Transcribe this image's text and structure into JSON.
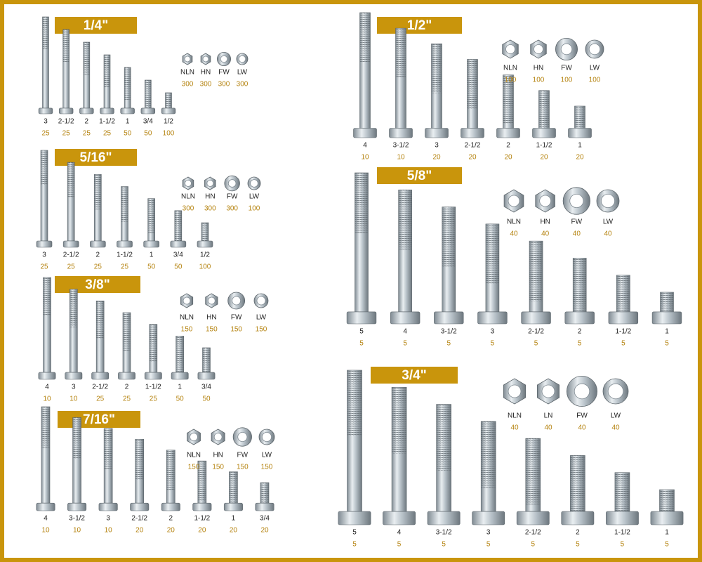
{
  "sections": [
    {
      "title": "1/4\"",
      "bolts": [
        {
          "size": "3",
          "qty": 25
        },
        {
          "size": "2-1/2",
          "qty": 25
        },
        {
          "size": "2",
          "qty": 25
        },
        {
          "size": "1-1/2",
          "qty": 25
        },
        {
          "size": "1",
          "qty": 50
        },
        {
          "size": "3/4",
          "qty": 50
        },
        {
          "size": "1/2",
          "qty": 100
        }
      ],
      "hardware": [
        {
          "name": "NLN",
          "qty": 300
        },
        {
          "name": "HN",
          "qty": 300
        },
        {
          "name": "FW",
          "qty": 300
        },
        {
          "name": "LW",
          "qty": 300
        }
      ]
    },
    {
      "title": "5/16\"",
      "bolts": [
        {
          "size": "3",
          "qty": 25
        },
        {
          "size": "2-1/2",
          "qty": 25
        },
        {
          "size": "2",
          "qty": 25
        },
        {
          "size": "1-1/2",
          "qty": 25
        },
        {
          "size": "1",
          "qty": 50
        },
        {
          "size": "3/4",
          "qty": 50
        },
        {
          "size": "1/2",
          "qty": 100
        }
      ],
      "hardware": [
        {
          "name": "NLN",
          "qty": 300
        },
        {
          "name": "HN",
          "qty": 300
        },
        {
          "name": "FW",
          "qty": 300
        },
        {
          "name": "LW",
          "qty": 100
        }
      ]
    },
    {
      "title": "3/8\"",
      "bolts": [
        {
          "size": "4",
          "qty": 10
        },
        {
          "size": "3",
          "qty": 10
        },
        {
          "size": "2-1/2",
          "qty": 25
        },
        {
          "size": "2",
          "qty": 25
        },
        {
          "size": "1-1/2",
          "qty": 25
        },
        {
          "size": "1",
          "qty": 50
        },
        {
          "size": "3/4",
          "qty": 50
        }
      ],
      "hardware": [
        {
          "name": "NLN",
          "qty": 150
        },
        {
          "name": "HN",
          "qty": 150
        },
        {
          "name": "FW",
          "qty": 150
        },
        {
          "name": "LW",
          "qty": 150
        }
      ]
    },
    {
      "title": "7/16\"",
      "bolts": [
        {
          "size": "4",
          "qty": 10
        },
        {
          "size": "3-1/2",
          "qty": 10
        },
        {
          "size": "3",
          "qty": 10
        },
        {
          "size": "2-1/2",
          "qty": 20
        },
        {
          "size": "2",
          "qty": 20
        },
        {
          "size": "1-1/2",
          "qty": 20
        },
        {
          "size": "1",
          "qty": 20
        },
        {
          "size": "3/4",
          "qty": 20
        }
      ],
      "hardware": [
        {
          "name": "NLN",
          "qty": 150
        },
        {
          "name": "HN",
          "qty": 150
        },
        {
          "name": "FW",
          "qty": 150
        },
        {
          "name": "LW",
          "qty": 150
        }
      ]
    },
    {
      "title": "1/2\"",
      "bolts": [
        {
          "size": "4",
          "qty": 10
        },
        {
          "size": "3-1/2",
          "qty": 10
        },
        {
          "size": "3",
          "qty": 20
        },
        {
          "size": "2-1/2",
          "qty": 20
        },
        {
          "size": "2",
          "qty": 20
        },
        {
          "size": "1-1/2",
          "qty": 20
        },
        {
          "size": "1",
          "qty": 20
        }
      ],
      "hardware": [
        {
          "name": "NLN",
          "qty": 100
        },
        {
          "name": "HN",
          "qty": 100
        },
        {
          "name": "FW",
          "qty": 100
        },
        {
          "name": "LW",
          "qty": 100
        }
      ]
    },
    {
      "title": "5/8\"",
      "bolts": [
        {
          "size": "5",
          "qty": 5
        },
        {
          "size": "4",
          "qty": 5
        },
        {
          "size": "3-1/2",
          "qty": 5
        },
        {
          "size": "3",
          "qty": 5
        },
        {
          "size": "2-1/2",
          "qty": 5
        },
        {
          "size": "2",
          "qty": 5
        },
        {
          "size": "1-1/2",
          "qty": 5
        },
        {
          "size": "1",
          "qty": 5
        }
      ],
      "hardware": [
        {
          "name": "NLN",
          "qty": 40
        },
        {
          "name": "HN",
          "qty": 40
        },
        {
          "name": "FW",
          "qty": 40
        },
        {
          "name": "LW",
          "qty": 40
        }
      ]
    },
    {
      "title": "3/4\"",
      "bolts": [
        {
          "size": "5",
          "qty": 5
        },
        {
          "size": "4",
          "qty": 5
        },
        {
          "size": "3-1/2",
          "qty": 5
        },
        {
          "size": "3",
          "qty": 5
        },
        {
          "size": "2-1/2",
          "qty": 5
        },
        {
          "size": "2",
          "qty": 5
        },
        {
          "size": "1-1/2",
          "qty": 5
        },
        {
          "size": "1",
          "qty": 5
        }
      ],
      "hardware": [
        {
          "name": "NLN",
          "qty": 40
        },
        {
          "name": "LN",
          "qty": 40
        },
        {
          "name": "FW",
          "qty": 40
        },
        {
          "name": "LW",
          "qty": 40
        }
      ]
    }
  ]
}
